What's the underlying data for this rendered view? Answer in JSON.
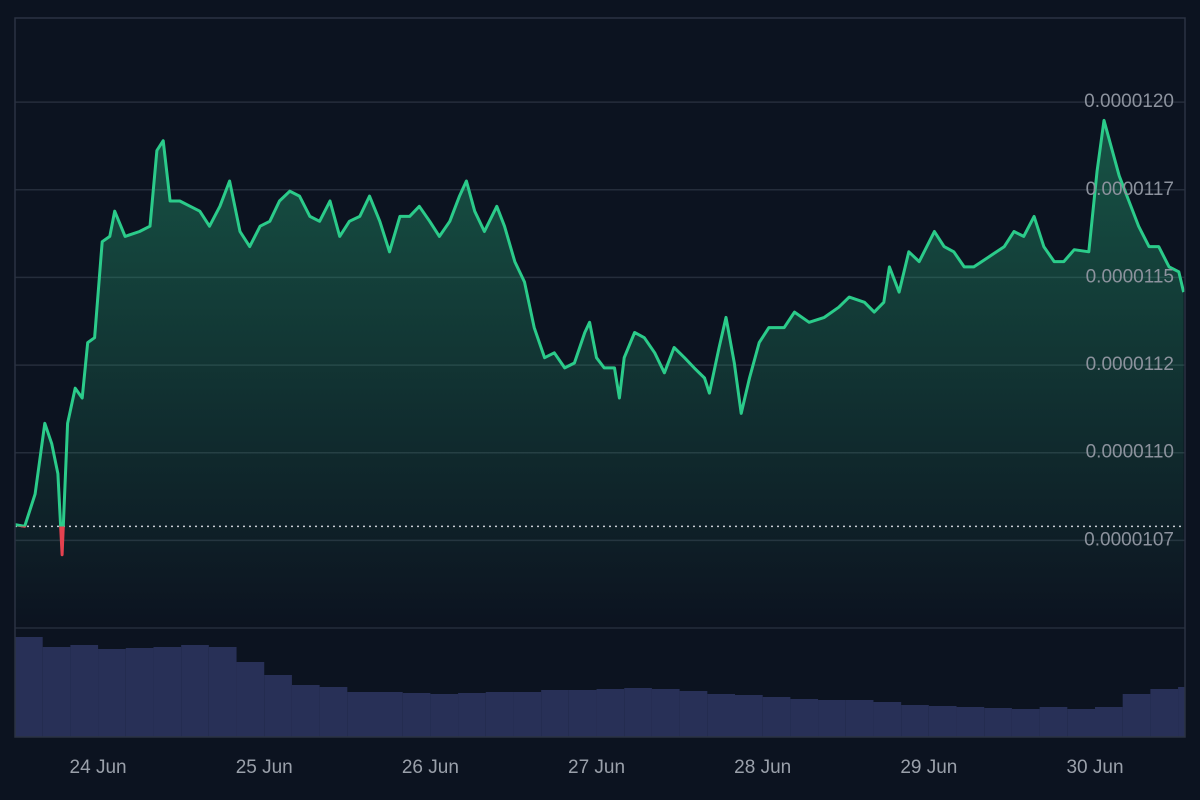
{
  "chart_data": {
    "type": "area",
    "x": [
      0,
      1.4,
      2.9,
      4.3,
      5.3,
      6.2,
      6.8,
      7.6,
      8.7,
      9.7,
      10.5,
      11.5,
      12.6,
      13.7,
      14.4,
      15.9,
      18.0,
      19.5,
      20.5,
      21.4,
      22.4,
      23.8,
      25.3,
      26.7,
      28.1,
      29.6,
      31.0,
      32.5,
      33.9,
      35.4,
      36.8,
      38.2,
      39.7,
      41.1,
      42.6,
      44.0,
      45.5,
      46.9,
      48.3,
      49.8,
      51.2,
      52.7,
      54.1,
      55.6,
      57.0,
      58.4,
      59.9,
      61.3,
      62.8,
      64.2,
      65.2,
      66.4,
      67.8,
      69.6,
      70.7,
      72.2,
      73.6,
      75.0,
      76.5,
      77.9,
      79.4,
      80.8,
      82.3,
      83.0,
      84.0,
      85.1,
      86.6,
      87.3,
      88.0,
      89.5,
      90.9,
      92.4,
      93.8,
      95.2,
      96.7,
      98.1,
      99.6,
      100.3,
      101.7,
      102.7,
      103.9,
      104.9,
      106.1,
      107.5,
      108.9,
      111.1,
      112.6,
      114.7,
      116.9,
      119.0,
      120.5,
      122.7,
      124.1,
      125.5,
      126.3,
      127.7,
      129.1,
      130.6,
      132.8,
      134.2,
      135.6,
      137.1,
      138.5,
      140.7,
      142.9,
      144.3,
      145.7,
      147.2,
      148.6,
      150.1,
      151.5,
      153.0,
      155.1,
      156.3,
      157.3,
      158.3,
      159.5,
      160.9,
      162.3,
      163.8,
      165.2,
      166.7,
      168.1,
      168.8
    ],
    "values": [
      1.0795e-05,
      1.079e-05,
      1.0882e-05,
      1.1084e-05,
      1.1026e-05,
      1.094e-05,
      1.0709e-05,
      1.1084e-05,
      1.1184e-05,
      1.1156e-05,
      1.1314e-05,
      1.1328e-05,
      1.1602e-05,
      1.1617e-05,
      1.1689e-05,
      1.1617e-05,
      1.1631e-05,
      1.1646e-05,
      1.1862e-05,
      1.189e-05,
      1.1718e-05,
      1.1718e-05,
      1.1703e-05,
      1.1689e-05,
      1.1646e-05,
      1.1703e-05,
      1.1775e-05,
      1.1631e-05,
      1.1588e-05,
      1.1646e-05,
      1.166e-05,
      1.1718e-05,
      1.1746e-05,
      1.1732e-05,
      1.1674e-05,
      1.166e-05,
      1.1718e-05,
      1.1617e-05,
      1.166e-05,
      1.1674e-05,
      1.1732e-05,
      1.166e-05,
      1.1573e-05,
      1.1674e-05,
      1.1674e-05,
      1.1703e-05,
      1.166e-05,
      1.1617e-05,
      1.166e-05,
      1.1732e-05,
      1.1775e-05,
      1.1689e-05,
      1.1631e-05,
      1.1703e-05,
      1.1646e-05,
      1.1545e-05,
      1.1487e-05,
      1.1357e-05,
      1.1271e-05,
      1.1285e-05,
      1.1242e-05,
      1.1256e-05,
      1.1343e-05,
      1.1372e-05,
      1.1271e-05,
      1.1242e-05,
      1.1242e-05,
      1.1156e-05,
      1.1271e-05,
      1.1343e-05,
      1.1328e-05,
      1.1285e-05,
      1.1228e-05,
      1.13e-05,
      1.1271e-05,
      1.1242e-05,
      1.1213e-05,
      1.117e-05,
      1.13e-05,
      1.1386e-05,
      1.1256e-05,
      1.1112e-05,
      1.1213e-05,
      1.1314e-05,
      1.1357e-05,
      1.1357e-05,
      1.1401e-05,
      1.1372e-05,
      1.1386e-05,
      1.1415e-05,
      1.1444e-05,
      1.1429e-05,
      1.1401e-05,
      1.1429e-05,
      1.153e-05,
      1.1458e-05,
      1.1573e-05,
      1.1545e-05,
      1.1631e-05,
      1.1588e-05,
      1.1573e-05,
      1.153e-05,
      1.153e-05,
      1.1559e-05,
      1.1588e-05,
      1.1631e-05,
      1.1617e-05,
      1.1674e-05,
      1.1588e-05,
      1.1545e-05,
      1.1545e-05,
      1.1579e-05,
      1.1573e-05,
      1.1804e-05,
      1.1948e-05,
      1.1876e-05,
      1.179e-05,
      1.1718e-05,
      1.1646e-05,
      1.1588e-05,
      1.1588e-05,
      1.153e-05,
      1.1516e-05,
      1.1458e-05
    ],
    "color": "#2bcb8a",
    "down_color": "#e5414f",
    "baseline": 1.079e-05,
    "xlim": [
      0,
      169
    ],
    "xticks": [
      {
        "value": 12,
        "label": "24 Jun"
      },
      {
        "value": 36,
        "label": "25 Jun"
      },
      {
        "value": 60,
        "label": "26 Jun"
      },
      {
        "value": 84,
        "label": "27 Jun"
      },
      {
        "value": 108,
        "label": "28 Jun"
      },
      {
        "value": 132,
        "label": "29 Jun"
      },
      {
        "value": 156,
        "label": "30 Jun"
      }
    ],
    "ylim": [
      1.05e-05,
      1.224e-05
    ],
    "yticks": [
      {
        "value": 1.2e-05,
        "label": "0.0000120"
      },
      {
        "value": 1.175e-05,
        "label": "0.0000117"
      },
      {
        "value": 1.15e-05,
        "label": "0.0000115"
      },
      {
        "value": 1.125e-05,
        "label": "0.0000112"
      },
      {
        "value": 1.1e-05,
        "label": "0.0000110"
      },
      {
        "value": 1.075e-05,
        "label": "0.0000107"
      }
    ],
    "grid": true,
    "volume": {
      "x": [
        0,
        4,
        8,
        12,
        16,
        20,
        24,
        28,
        32,
        36,
        40,
        44,
        48,
        52,
        56,
        60,
        64,
        68,
        72,
        76,
        80,
        84,
        88,
        92,
        96,
        100,
        104,
        108,
        112,
        116,
        120,
        124,
        128,
        132,
        136,
        140,
        144,
        148,
        152,
        156,
        160,
        164,
        168
      ],
      "values": [
        100,
        90,
        92,
        88,
        89,
        90,
        92,
        90,
        75,
        62,
        52,
        50,
        45,
        45,
        44,
        43,
        44,
        45,
        45,
        47,
        47,
        48,
        49,
        48,
        46,
        43,
        42,
        40,
        38,
        37,
        37,
        35,
        32,
        31,
        30,
        29,
        28,
        30,
        28,
        30,
        43,
        48,
        50
      ],
      "color": "#283057",
      "lim": [
        0,
        100
      ]
    }
  }
}
